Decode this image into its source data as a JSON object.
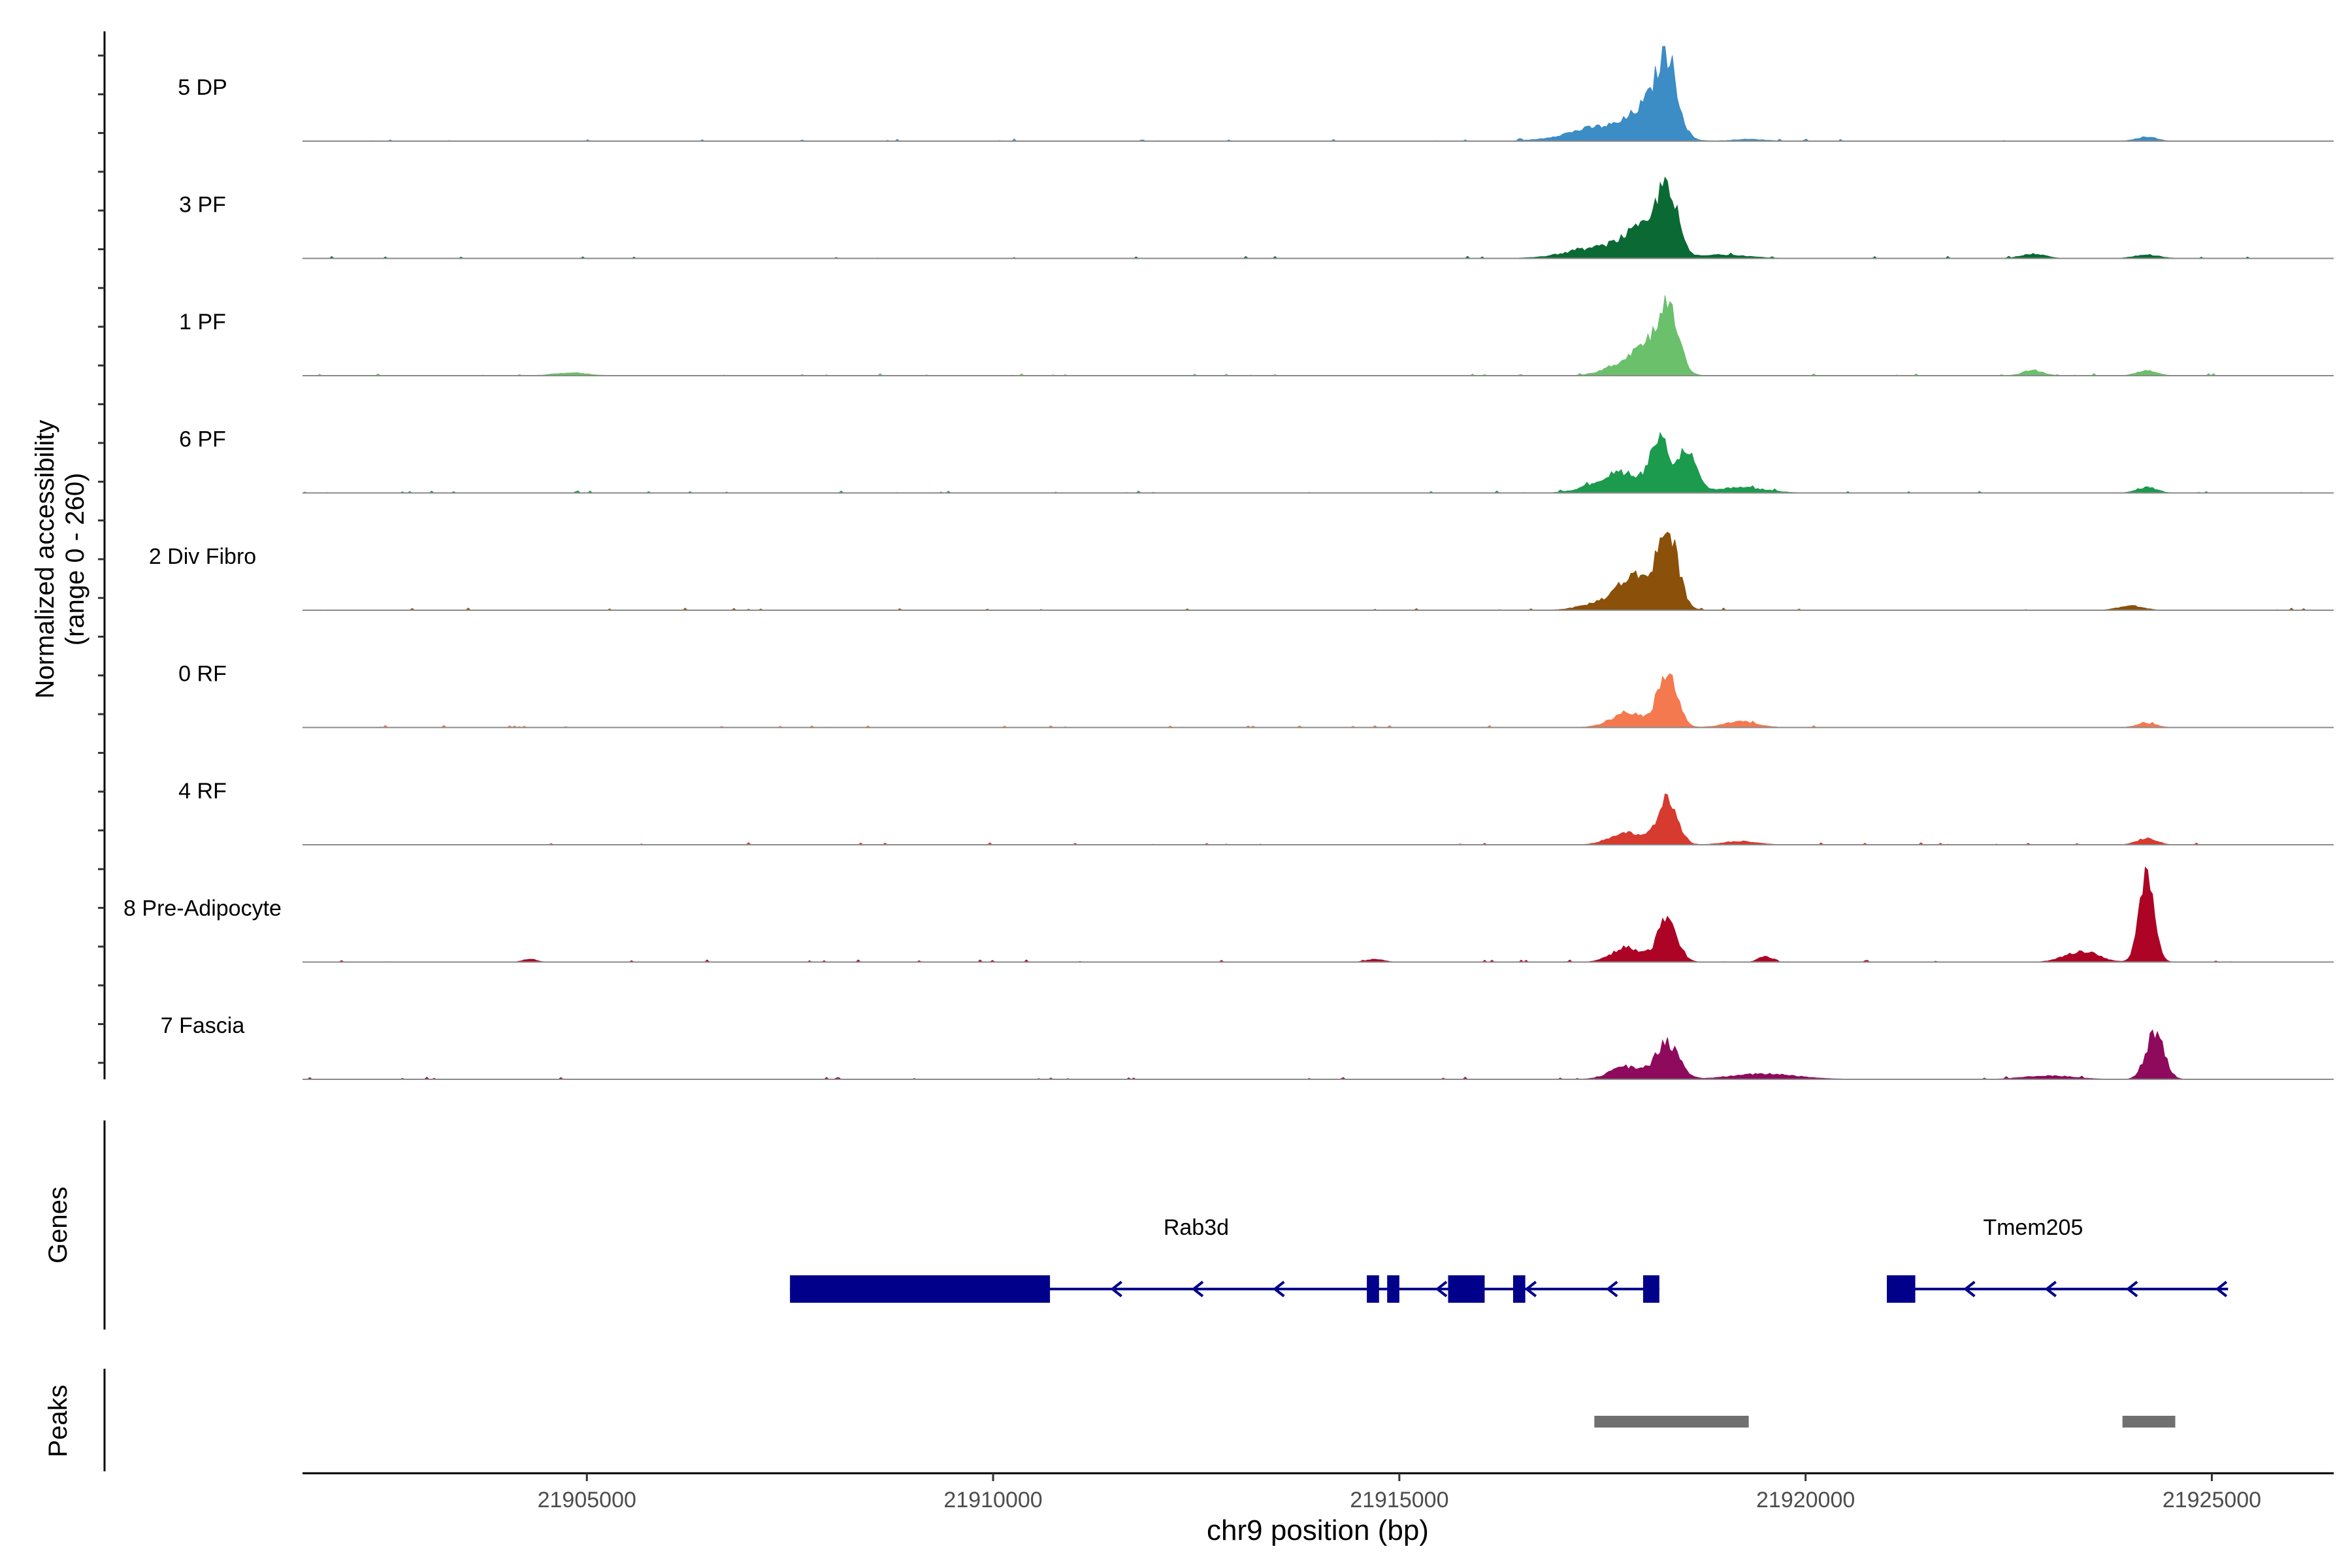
{
  "chart_data": {
    "type": "area",
    "region": "chr9",
    "x_range": [
      21901500,
      21926500
    ],
    "ylabel_line1": "Normalized accessibility",
    "ylabel_line2": "(range 0 - 260)",
    "y_range": [
      0,
      260
    ],
    "xlabel": "chr9 position (bp)",
    "x_ticks": [
      21905000,
      21910000,
      21915000,
      21920000,
      21925000
    ],
    "x_tick_labels": [
      "21905000",
      "21910000",
      "21915000",
      "21920000",
      "21925000"
    ],
    "tracks": [
      {
        "name": "5 DP",
        "color": "#3C8CC6",
        "extent": [
          21901500,
          21925700
        ],
        "peaks": [
          [
            21918300,
            180,
            120
          ],
          [
            21918100,
            90,
            220
          ],
          [
            21917500,
            40,
            400
          ],
          [
            21924200,
            12,
            120
          ],
          [
            21919300,
            5,
            200
          ]
        ]
      },
      {
        "name": "3 PF",
        "color": "#0B6A34",
        "extent": [
          21901500,
          21925700
        ],
        "peaks": [
          [
            21918300,
            185,
            120
          ],
          [
            21918000,
            70,
            220
          ],
          [
            21917500,
            30,
            400
          ],
          [
            21922800,
            12,
            150
          ],
          [
            21924200,
            10,
            150
          ],
          [
            21919000,
            10,
            300
          ]
        ]
      },
      {
        "name": "1 PF",
        "color": "#6BC06B",
        "extent": [
          21901500,
          21925700
        ],
        "peaks": [
          [
            21918300,
            190,
            130
          ],
          [
            21918000,
            70,
            150
          ],
          [
            21917700,
            28,
            200
          ],
          [
            21922800,
            15,
            120
          ],
          [
            21924200,
            14,
            120
          ],
          [
            21904800,
            8,
            200
          ]
        ]
      },
      {
        "name": "6 PF",
        "color": "#1C9A4E",
        "extent": [
          21901500,
          21926300
        ],
        "peaks": [
          [
            21918200,
            150,
            110
          ],
          [
            21918550,
            125,
            110
          ],
          [
            21917800,
            45,
            200
          ],
          [
            21917500,
            25,
            250
          ],
          [
            21924200,
            16,
            120
          ],
          [
            21919200,
            15,
            300
          ]
        ]
      },
      {
        "name": "2 Div Fibro",
        "color": "#8B5009",
        "extent": [
          21901500,
          21926300
        ],
        "peaks": [
          [
            21918300,
            210,
            130
          ],
          [
            21917900,
            90,
            200
          ],
          [
            21917500,
            20,
            250
          ],
          [
            21924000,
            12,
            150
          ]
        ]
      },
      {
        "name": "0 RF",
        "color": "#F4794E",
        "extent": [
          21901500,
          21925700
        ],
        "peaks": [
          [
            21918300,
            145,
            120
          ],
          [
            21917800,
            40,
            200
          ],
          [
            21919200,
            16,
            200
          ],
          [
            21924200,
            12,
            120
          ]
        ]
      },
      {
        "name": "4 RF",
        "color": "#D73A2E",
        "extent": [
          21901500,
          21925700
        ],
        "peaks": [
          [
            21918300,
            130,
            120
          ],
          [
            21917800,
            35,
            200
          ],
          [
            21924200,
            18,
            120
          ],
          [
            21919200,
            10,
            200
          ]
        ]
      },
      {
        "name": "8 Pre-Adipocyte",
        "color": "#AD0426",
        "extent": [
          21901500,
          21925700
        ],
        "peaks": [
          [
            21924200,
            250,
            90
          ],
          [
            21918300,
            120,
            120
          ],
          [
            21917800,
            40,
            180
          ],
          [
            21923400,
            30,
            200
          ],
          [
            21904300,
            8,
            80
          ],
          [
            21919500,
            15,
            80
          ],
          [
            21914700,
            8,
            100
          ]
        ]
      },
      {
        "name": "7 Fascia",
        "color": "#8E0A5C",
        "extent": [
          21901500,
          21926300
        ],
        "peaks": [
          [
            21924300,
            130,
            110
          ],
          [
            21918300,
            100,
            140
          ],
          [
            21917800,
            35,
            200
          ],
          [
            21919500,
            15,
            400
          ],
          [
            21923000,
            10,
            300
          ]
        ]
      }
    ],
    "genes_label": "Genes",
    "gene_color": "#00008B",
    "genes": [
      {
        "name": "Rab3d",
        "label_x": 21912500,
        "strand": "-",
        "start": 21907500,
        "end": 21918200,
        "exons": [
          [
            21907500,
            21910700
          ],
          [
            21914600,
            21914750
          ],
          [
            21914850,
            21915000
          ],
          [
            21915600,
            21916050
          ],
          [
            21916400,
            21916550
          ],
          [
            21918000,
            21918200
          ]
        ],
        "arrows": [
          21911500,
          21912500,
          21913500,
          21915500,
          21916600,
          21917600
        ]
      },
      {
        "name": "Tmem205",
        "label_x": 21922800,
        "strand": "-",
        "start": 21921000,
        "end": 21925200,
        "exons": [
          [
            21921000,
            21921350
          ]
        ],
        "arrows": [
          21922000,
          21923000,
          21924000,
          21925100
        ]
      }
    ],
    "peaks_label": "Peaks",
    "peak_color": "#707070",
    "peak_regions": [
      [
        21917400,
        21919300
      ],
      [
        21923900,
        21924550
      ]
    ]
  }
}
